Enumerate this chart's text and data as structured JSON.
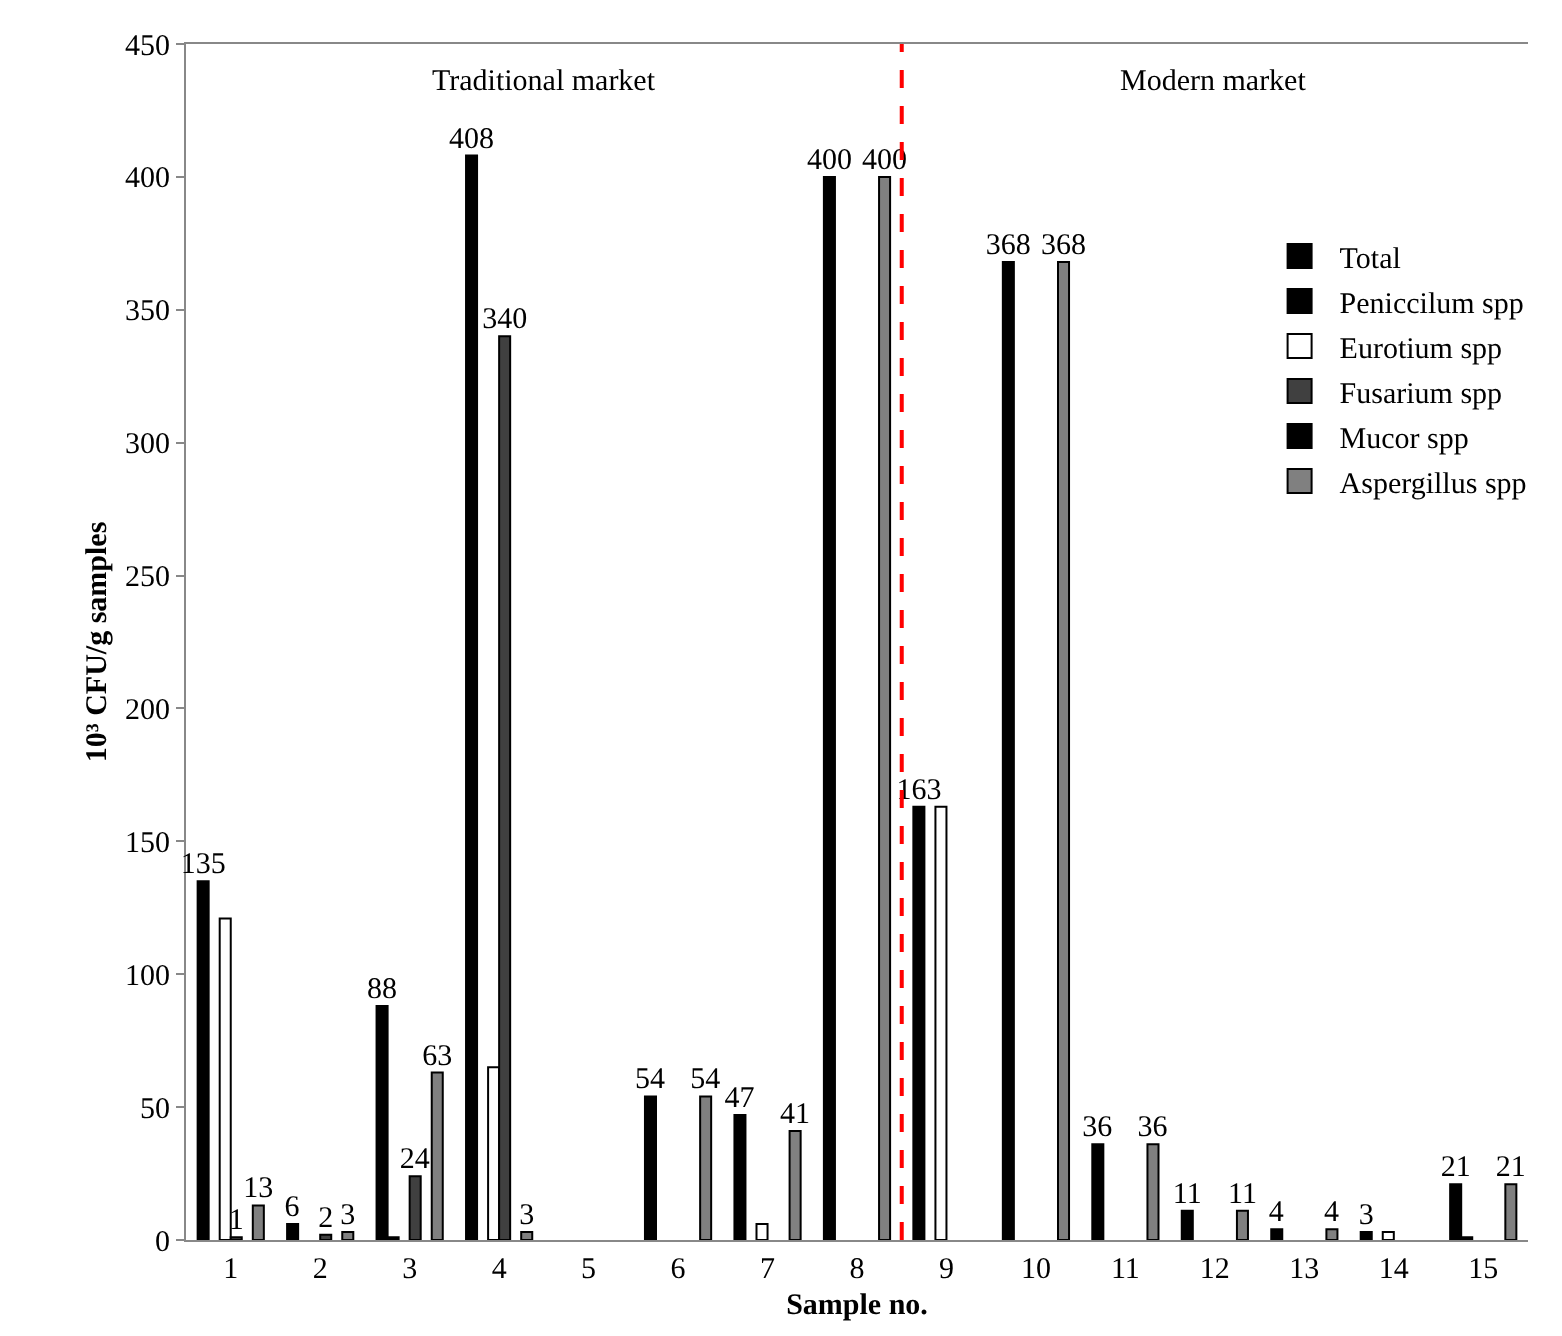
{
  "chart_data": {
    "type": "bar",
    "xlabel": "Sample no.",
    "ylabel": "10³ CFU/g samples",
    "x": [
      1,
      2,
      3,
      4,
      5,
      6,
      7,
      8,
      9,
      10,
      11,
      12,
      13,
      14,
      15
    ],
    "xlim": [
      0.5,
      15.5
    ],
    "xticks": [
      1,
      2,
      3,
      4,
      5,
      6,
      7,
      8,
      9,
      10,
      11,
      12,
      13,
      14,
      15
    ],
    "ylim": [
      0,
      450
    ],
    "yticks": [
      0,
      50,
      100,
      150,
      200,
      250,
      300,
      350,
      400,
      450
    ],
    "grid": false,
    "legend": "right",
    "series": [
      {
        "name": "Total",
        "color": "#000000",
        "values": [
          135,
          6,
          88,
          408,
          null,
          54,
          47,
          400,
          163,
          368,
          36,
          11,
          4,
          3,
          21
        ],
        "value_labels": [
          "135",
          "6",
          "88",
          "408",
          null,
          "54",
          "47",
          "400",
          "163",
          "368",
          "36",
          "11",
          "4",
          "3",
          "21"
        ]
      },
      {
        "name": "Peniccilum spp",
        "color": "#000000",
        "values": [
          null,
          null,
          1,
          null,
          null,
          null,
          null,
          null,
          null,
          null,
          null,
          null,
          null,
          null,
          1
        ],
        "value_labels": [
          null,
          null,
          null,
          null,
          null,
          null,
          null,
          null,
          null,
          null,
          null,
          null,
          null,
          null,
          null
        ]
      },
      {
        "name": "Eurotium spp",
        "color": "#ffffff",
        "values": [
          121,
          null,
          null,
          65,
          null,
          null,
          6,
          null,
          163,
          null,
          null,
          null,
          null,
          3,
          null
        ],
        "value_labels": [
          null,
          null,
          null,
          null,
          null,
          null,
          null,
          null,
          null,
          null,
          null,
          null,
          null,
          null,
          null
        ]
      },
      {
        "name": "Fusarium spp",
        "color": "#404040",
        "values": [
          1,
          2,
          24,
          340,
          null,
          null,
          null,
          null,
          null,
          null,
          null,
          null,
          null,
          null,
          null
        ],
        "value_labels": [
          "1",
          "2",
          "24",
          "340",
          null,
          null,
          null,
          null,
          null,
          null,
          null,
          null,
          null,
          null,
          null
        ]
      },
      {
        "name": "Mucor spp",
        "color": "#000000",
        "values": [
          null,
          null,
          null,
          null,
          null,
          null,
          null,
          null,
          null,
          null,
          null,
          null,
          null,
          null,
          null
        ],
        "value_labels": [
          null,
          null,
          null,
          null,
          null,
          null,
          null,
          null,
          null,
          null,
          null,
          null,
          null,
          null,
          null
        ]
      },
      {
        "name": "Aspergillus spp",
        "color": "#808080",
        "values": [
          13,
          3,
          63,
          3,
          null,
          54,
          41,
          400,
          null,
          368,
          36,
          11,
          4,
          null,
          21
        ],
        "value_labels": [
          "13",
          "3",
          "63",
          "3",
          null,
          "54",
          "41",
          "400",
          null,
          "368",
          "36",
          "11",
          "4",
          null,
          "21"
        ]
      }
    ],
    "ref_lines": [
      {
        "axis": "x",
        "value": 8.5,
        "color": "#ff0000",
        "line_style": "dashed"
      }
    ],
    "annotations": [
      "Traditional market",
      "Modern market"
    ]
  }
}
